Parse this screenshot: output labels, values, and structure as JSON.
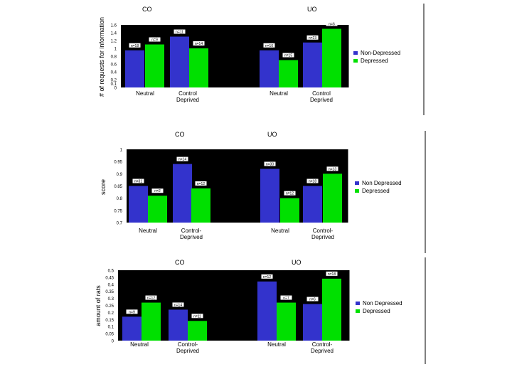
{
  "colors": {
    "background": "#ffffff",
    "plot_bg": "#000000",
    "non_depressed": "#3333cc",
    "depressed": "#00e000",
    "axis": "#000000",
    "label_box": "#ffffff"
  },
  "chart_data": [
    {
      "type": "bar",
      "ylabel": "# of requests for information",
      "group_titles": [
        "CO",
        "UO"
      ],
      "categories": [
        "Neutral",
        "Control Deprived",
        "Neutral",
        "Control Deprived"
      ],
      "ylim": [
        0,
        1.6
      ],
      "yticks": [
        "0",
        "0.1",
        "0.2",
        "0.4",
        "0.6",
        "0.8",
        "1",
        "1.2",
        "1.4",
        "1.6"
      ],
      "ytick_values": [
        0,
        0.1,
        0.2,
        0.4,
        0.6,
        0.8,
        1.0,
        1.2,
        1.4,
        1.6
      ],
      "legend_position": "right",
      "series": [
        {
          "name": "Non-Depressed",
          "values": [
            0.95,
            1.3,
            0.95,
            1.15
          ],
          "labels": [
            "n=18",
            "n=11",
            "n=10",
            "n=23"
          ]
        },
        {
          "name": "Depressed",
          "values": [
            1.1,
            1.0,
            0.7,
            1.5
          ],
          "labels": [
            "n=9",
            "n=14",
            "n=15",
            "n=6"
          ]
        }
      ]
    },
    {
      "type": "bar",
      "ylabel": "score",
      "group_titles": [
        "CO",
        "UO"
      ],
      "categories": [
        "Neutral",
        "Control-Deprived",
        "Neutral",
        "Control-Deprived"
      ],
      "ylim": [
        0.7,
        1.0
      ],
      "yticks": [
        "0.7",
        "0.75",
        "0.8",
        "0.85",
        "0.9",
        "0.95",
        "1"
      ],
      "ytick_values": [
        0.7,
        0.75,
        0.8,
        0.85,
        0.9,
        0.95,
        1.0
      ],
      "legend_position": "right",
      "series": [
        {
          "name": "Non Depressed",
          "values": [
            0.85,
            0.94,
            0.92,
            0.85
          ],
          "labels": [
            "n=31",
            "n=14",
            "n=30",
            "n=18"
          ]
        },
        {
          "name": "Depressed",
          "values": [
            0.81,
            0.84,
            0.8,
            0.9
          ],
          "labels": [
            "n=2",
            "n=12",
            "n=12",
            "n=13"
          ]
        }
      ]
    },
    {
      "type": "bar",
      "ylabel": "amount of rats",
      "group_titles": [
        "CO",
        "UO"
      ],
      "categories": [
        "Neutral",
        "Control-Deprived",
        "Neutral",
        "Control-Deprived"
      ],
      "ylim": [
        0,
        0.5
      ],
      "yticks": [
        "0",
        "0.05",
        "0.1",
        "0.15",
        "0.2",
        "0.25",
        "0.3",
        "0.35",
        "0.4",
        "0.45",
        "0.5"
      ],
      "ytick_values": [
        0,
        0.05,
        0.1,
        0.15,
        0.2,
        0.25,
        0.3,
        0.35,
        0.4,
        0.45,
        0.5
      ],
      "legend_position": "right",
      "series": [
        {
          "name": "Non Depressed",
          "values": [
            0.17,
            0.22,
            0.42,
            0.26
          ],
          "labels": [
            "n=9",
            "n=14",
            "n=12",
            "n=6"
          ]
        },
        {
          "name": "Depressed",
          "values": [
            0.27,
            0.14,
            0.27,
            0.44
          ],
          "labels": [
            "n=12",
            "n=11",
            "n=7",
            "n=18"
          ]
        }
      ]
    }
  ]
}
